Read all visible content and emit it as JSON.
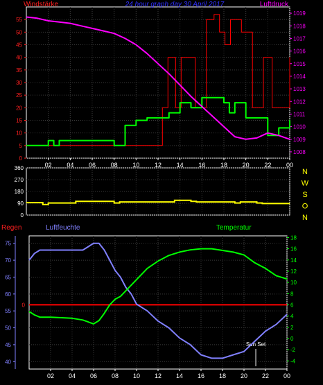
{
  "chart_data": [
    {
      "type": "line",
      "title": "24 hour graph day  30 April 2017",
      "left_axis_label": "Windstärke",
      "right_axis_label": "Luftdruck",
      "x_ticks": [
        "02",
        "04",
        "06",
        "08",
        "10",
        "12",
        "14",
        "16",
        "18",
        "20",
        "22",
        "00"
      ],
      "x_range": [
        0,
        24
      ],
      "left_ylim": [
        0,
        60
      ],
      "left_ticks": [
        0,
        5,
        10,
        15,
        20,
        25,
        30,
        35,
        40,
        45,
        50,
        55
      ],
      "right_ylim": [
        1007.5,
        1019.5
      ],
      "right_ticks": [
        1008,
        1009,
        1010,
        1011,
        1012,
        1013,
        1014,
        1015,
        1016,
        1017,
        1018,
        1019
      ],
      "series": [
        {
          "key": "wind_avg",
          "axis": "left",
          "color": "#00ff00",
          "step": true,
          "x": [
            0,
            1.5,
            2,
            2.5,
            3,
            8,
            9,
            10,
            11,
            12,
            13,
            14,
            15,
            16,
            17,
            18,
            18.5,
            19,
            20,
            21,
            22,
            23,
            24
          ],
          "y": [
            5,
            5,
            7,
            5,
            7,
            5,
            13,
            15,
            16,
            16,
            18,
            22,
            20,
            24,
            24,
            22,
            18,
            22,
            16,
            16,
            9,
            12,
            15
          ]
        },
        {
          "key": "wind_gust",
          "axis": "left",
          "color": "#ff0000",
          "step": true,
          "x": [
            0,
            12.4,
            12.9,
            13.6,
            14.1,
            15.4,
            16.4,
            17.1,
            17.6,
            18.1,
            18.6,
            19.6,
            20.6,
            21.6,
            22.4,
            23.4,
            24
          ],
          "y": [
            5,
            20,
            40,
            20,
            40,
            20,
            55,
            57,
            50,
            45,
            55,
            50,
            20,
            40,
            20,
            20,
            40
          ]
        },
        {
          "key": "pressure",
          "axis": "right",
          "color": "#ff00ff",
          "x": [
            0,
            1,
            2,
            3,
            4,
            5,
            6,
            7,
            8,
            9,
            10,
            11,
            12,
            13,
            14,
            15,
            16,
            17,
            18,
            19,
            20,
            21,
            22,
            23,
            24
          ],
          "y": [
            1018.7,
            1018.6,
            1018.4,
            1018.3,
            1018.2,
            1018.0,
            1017.8,
            1017.6,
            1017.4,
            1017.0,
            1016.5,
            1015.8,
            1015.0,
            1014.2,
            1013.3,
            1012.4,
            1011.6,
            1010.8,
            1010.0,
            1009.2,
            1009.0,
            1009.1,
            1009.5,
            1009.3,
            1009.0
          ]
        }
      ]
    },
    {
      "type": "line",
      "title": "",
      "x_ticks": [
        "02",
        "04",
        "06",
        "08",
        "10",
        "12",
        "14",
        "16",
        "18",
        "20",
        "22",
        "00"
      ],
      "x_range": [
        0,
        24
      ],
      "ylim": [
        0,
        360
      ],
      "left_ticks": [
        0,
        90,
        180,
        270,
        360
      ],
      "right_labels": [
        "N",
        "W",
        "S",
        "O",
        "N"
      ],
      "series": [
        {
          "key": "wind_dir",
          "color": "#ffff00",
          "step": true,
          "x": [
            0,
            1.5,
            2,
            4,
            4.5,
            8,
            8.5,
            13,
            13.5,
            15,
            15.5,
            19,
            19.5,
            21,
            21.5,
            24
          ],
          "y": [
            95,
            80,
            92,
            92,
            105,
            92,
            100,
            100,
            112,
            105,
            100,
            92,
            100,
            92,
            88,
            88
          ]
        }
      ]
    },
    {
      "type": "line",
      "title": "",
      "top_labels": {
        "left": "Regen",
        "middle": "Luftfeuchte",
        "right": "Temperatur"
      },
      "x_ticks": [
        "02",
        "04",
        "06",
        "08",
        "10",
        "12",
        "14",
        "16",
        "18",
        "20",
        "22",
        "00"
      ],
      "x_range": [
        0,
        24
      ],
      "humidity_ylim": [
        37.8,
        77.2
      ],
      "humidity_ticks": [
        40,
        45,
        50,
        55,
        60,
        65,
        70,
        75
      ],
      "temperature_ylim": [
        -5.45,
        18.3
      ],
      "temperature_ticks": [
        -4,
        -2,
        0,
        2,
        4,
        6,
        8,
        10,
        12,
        14,
        16,
        18
      ],
      "rain_axis_label": "0",
      "annotation": "Sun Set",
      "annotation_x": 21.1,
      "series": [
        {
          "key": "humidity",
          "axis": "humidity",
          "color": "#8080ff",
          "x": [
            0,
            0.5,
            1,
            2,
            3,
            4,
            5,
            5.5,
            6,
            6.5,
            7,
            7.5,
            8,
            8.5,
            9,
            9.5,
            10,
            11,
            12,
            13,
            14,
            15,
            16,
            17,
            18,
            19,
            20,
            21,
            22,
            23,
            24
          ],
          "y": [
            70,
            72,
            73,
            73,
            73,
            73,
            73,
            74,
            75,
            75,
            73,
            70,
            67,
            65,
            62,
            60,
            57,
            55,
            52,
            50,
            47,
            45,
            42,
            41,
            41,
            42,
            43,
            46,
            49,
            51,
            54
          ]
        },
        {
          "key": "temperature",
          "axis": "temperature",
          "color": "#00ff00",
          "x": [
            0,
            0.5,
            1,
            2,
            3,
            4,
            5,
            6,
            6.5,
            7,
            7.5,
            8,
            8.5,
            9,
            10,
            11,
            12,
            13,
            14,
            15,
            16,
            17,
            18,
            19,
            20,
            21,
            22,
            23,
            24
          ],
          "y": [
            4.8,
            4.2,
            3.8,
            3.8,
            3.7,
            3.6,
            3.3,
            2.6,
            3.2,
            4.5,
            6,
            7,
            7.5,
            8.5,
            10.5,
            12.5,
            13.8,
            14.8,
            15.4,
            15.8,
            16,
            16,
            15.7,
            15.4,
            14.9,
            13.5,
            12.5,
            11.2,
            10.6
          ]
        },
        {
          "key": "rain",
          "axis": "rain",
          "color": "#ff0000",
          "x": [
            0,
            24
          ],
          "y": [
            0,
            0
          ]
        }
      ]
    }
  ]
}
